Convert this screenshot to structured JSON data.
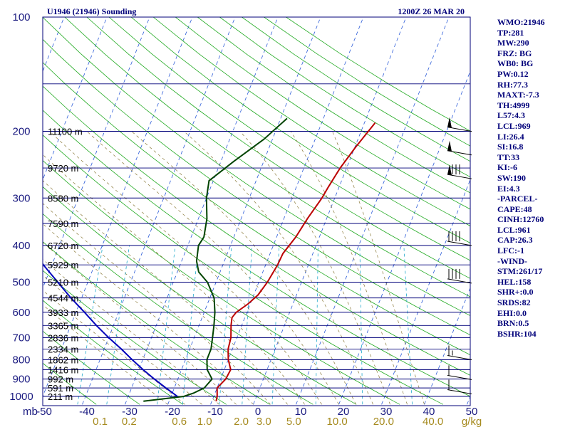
{
  "chart_data": {
    "type": "line",
    "title": "U1946 (21946) Sounding",
    "time": "1200Z 26 MAR 20",
    "pressure_axis": {
      "range_hpa": [
        1000,
        100
      ],
      "ticks": [
        "100",
        "200",
        "300",
        "400",
        "500",
        "600",
        "700",
        "800",
        "900",
        "1000"
      ],
      "unit_label": "mb"
    },
    "temperature_axis": {
      "range_c": [
        -50,
        50
      ],
      "ticks": [
        "-50",
        "-40",
        "-30",
        "-20",
        "-10",
        "0",
        "10",
        "20",
        "30",
        "40",
        "50"
      ]
    },
    "mixing_ratio_labels": [
      "0.1",
      "0.2",
      "0.6",
      "1.0",
      "2.0",
      "3.0",
      "5.0",
      "10.0",
      "20.0",
      "40.0"
    ],
    "mixing_ratio_unit": "g/kg",
    "height_labels": [
      {
        "p": 200,
        "text": "11100 m"
      },
      {
        "p": 250,
        "text": "9720 m"
      },
      {
        "p": 300,
        "text": "8580 m"
      },
      {
        "p": 350,
        "text": "7590 m"
      },
      {
        "p": 400,
        "text": "6720 m"
      },
      {
        "p": 450,
        "text": "5929 m"
      },
      {
        "p": 500,
        "text": "5210 m"
      },
      {
        "p": 550,
        "text": "4544 m"
      },
      {
        "p": 600,
        "text": "3933 m"
      },
      {
        "p": 650,
        "text": "3365 m"
      },
      {
        "p": 700,
        "text": "2836 m"
      },
      {
        "p": 750,
        "text": "2334 m"
      },
      {
        "p": 800,
        "text": "1862 m"
      },
      {
        "p": 850,
        "text": "1416 m"
      },
      {
        "p": 900,
        "text": "992 m"
      },
      {
        "p": 950,
        "text": "591 m"
      },
      {
        "p": 1000,
        "text": "211 m"
      }
    ],
    "series": [
      {
        "kind": "temperature",
        "color": "#bb0000",
        "points": [
          [
            1030,
            -9
          ],
          [
            1000,
            -9.2
          ],
          [
            950,
            -10
          ],
          [
            900,
            -8.8
          ],
          [
            850,
            -8.5
          ],
          [
            800,
            -10
          ],
          [
            750,
            -11
          ],
          [
            700,
            -11.4
          ],
          [
            650,
            -12.5
          ],
          [
            620,
            -13
          ],
          [
            600,
            -12.5
          ],
          [
            570,
            -10.5
          ],
          [
            540,
            -9
          ],
          [
            500,
            -8
          ],
          [
            450,
            -7.2
          ],
          [
            420,
            -7
          ],
          [
            380,
            -5.5
          ],
          [
            340,
            -4.5
          ],
          [
            300,
            -3
          ],
          [
            280,
            -2.5
          ],
          [
            250,
            -1.5
          ],
          [
            220,
            0.2
          ],
          [
            190,
            2.5
          ]
        ]
      },
      {
        "kind": "dewpoint",
        "color": "#004400",
        "points": [
          [
            1030,
            -26
          ],
          [
            1010,
            -20
          ],
          [
            1000,
            -17
          ],
          [
            980,
            -15
          ],
          [
            950,
            -13
          ],
          [
            900,
            -12
          ],
          [
            850,
            -14
          ],
          [
            800,
            -15
          ],
          [
            750,
            -15
          ],
          [
            700,
            -15.7
          ],
          [
            650,
            -16.5
          ],
          [
            600,
            -17.5
          ],
          [
            550,
            -19
          ],
          [
            500,
            -22
          ],
          [
            470,
            -25
          ],
          [
            440,
            -26.5
          ],
          [
            400,
            -27.5
          ],
          [
            380,
            -27
          ],
          [
            340,
            -28
          ],
          [
            300,
            -30
          ],
          [
            270,
            -31
          ],
          [
            240,
            -27
          ],
          [
            210,
            -22
          ],
          [
            185,
            -18.5
          ]
        ]
      },
      {
        "kind": "parcel",
        "color": "#0000bb",
        "points": [
          [
            1000,
            -18.5
          ],
          [
            950,
            -22
          ],
          [
            900,
            -25.5
          ],
          [
            850,
            -29
          ],
          [
            800,
            -32.5
          ],
          [
            750,
            -36
          ],
          [
            700,
            -40
          ],
          [
            650,
            -44
          ],
          [
            600,
            -48
          ],
          [
            550,
            -52.5
          ],
          [
            500,
            -57
          ],
          [
            450,
            -62
          ],
          [
            400,
            -66.5
          ],
          [
            350,
            -71.5
          ],
          [
            300,
            -76.5
          ],
          [
            250,
            -81.5
          ],
          [
            200,
            -87
          ],
          [
            150,
            -92
          ],
          [
            125,
            -95
          ]
        ]
      }
    ],
    "wind_barbs": [
      {
        "p": 195,
        "speed_kt": 50
      },
      {
        "p": 225,
        "speed_kt": 50
      },
      {
        "p": 260,
        "speed_kt": 80
      },
      {
        "p": 390,
        "speed_kt": 40
      },
      {
        "p": 490,
        "speed_kt": 40
      },
      {
        "p": 780,
        "speed_kt": 15
      },
      {
        "p": 880,
        "speed_kt": 10
      },
      {
        "p": 960,
        "speed_kt": 10
      }
    ]
  },
  "indices": [
    "WMO:21946",
    "TP:281",
    "MW:290",
    "FRZ: BG",
    "WB0: BG",
    "PW:0.12",
    "RH:77.3",
    "MAXT:-7.3",
    "TH:4999",
    "L57:4.3",
    "LCL:969",
    "LI:26.4",
    "SI:16.8",
    "TT:33",
    "KI:-6",
    "SW:190",
    "EI:4.3",
    "-PARCEL-",
    "CAPE:48",
    "CINH:12760",
    "LCL:961",
    "CAP:26.3",
    "LFC:-1",
    "-WIND-",
    "STM:261/17",
    "HEL:158",
    "SHR+:0.0",
    "SRDS:82",
    "EHI:0.0",
    "BRN:0.5",
    "BSHR:104"
  ],
  "colors": {
    "frame": "#00007a",
    "isobar": "#00007a",
    "isotherm": "#2a5ad8",
    "dry_adiabat": "#22aa22",
    "moist_adiabat": "#8a7a3a",
    "mixing_ratio": "#22aacc",
    "temperature": "#bb0000",
    "dewpoint": "#004400",
    "parcel": "#0000bb",
    "text": "#00007a"
  }
}
